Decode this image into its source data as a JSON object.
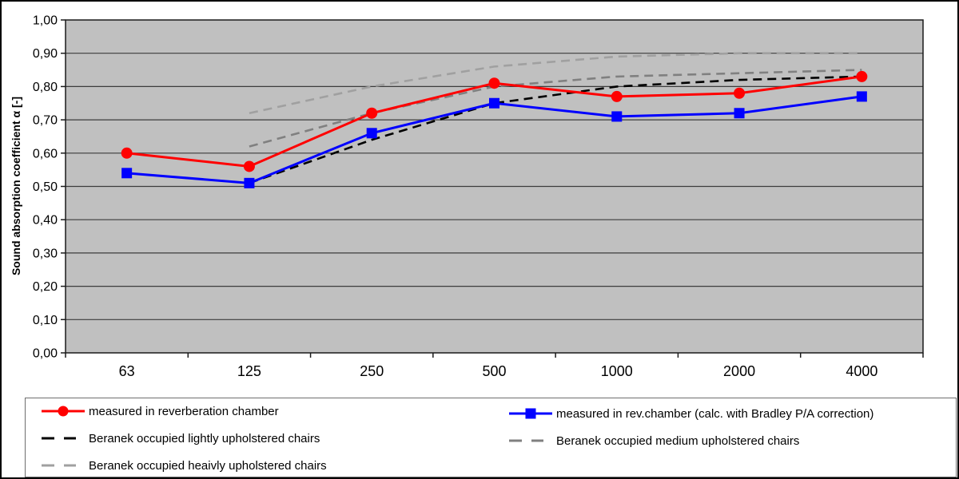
{
  "chart_data": {
    "type": "line",
    "title": "",
    "xlabel": "",
    "ylabel": "Sound absorption coefficient α [-]",
    "ylim": [
      0,
      1
    ],
    "grid": "horizontal",
    "legend_position": "bottom",
    "plot_bg": "#c0c0c0",
    "categories": [
      "63",
      "125",
      "250",
      "500",
      "1000",
      "2000",
      "4000"
    ],
    "y_tick_labels": [
      "0,00",
      "0,10",
      "0,20",
      "0,30",
      "0,40",
      "0,50",
      "0,60",
      "0,70",
      "0,80",
      "0,90",
      "1,00"
    ],
    "series": [
      {
        "name": "measured in reverberation chamber",
        "color": "#ff0000",
        "style": "solid",
        "marker": "circle",
        "values": [
          0.6,
          0.56,
          0.72,
          0.81,
          0.77,
          0.78,
          0.83
        ]
      },
      {
        "name": "measured in rev.chamber (calc. with Bradley P/A correction)",
        "color": "#0000ff",
        "style": "solid",
        "marker": "square",
        "values": [
          0.54,
          0.51,
          0.66,
          0.75,
          0.71,
          0.72,
          0.77
        ]
      },
      {
        "name": "Beranek occupied lightly upholstered chairs",
        "color": "#000000",
        "style": "dashed",
        "marker": "none",
        "values": [
          null,
          0.51,
          0.64,
          0.75,
          0.8,
          0.82,
          0.83
        ]
      },
      {
        "name": "Beranek occupied medium upholstered chairs",
        "color": "#808080",
        "style": "dashed",
        "marker": "none",
        "values": [
          null,
          0.62,
          0.72,
          0.8,
          0.83,
          0.84,
          0.85
        ]
      },
      {
        "name": "Beranek occupied heaivly upholstered chairs",
        "color": "#a0a0a0",
        "style": "dashed",
        "marker": "none",
        "values": [
          null,
          0.72,
          0.8,
          0.86,
          0.89,
          0.9,
          0.9
        ]
      }
    ]
  }
}
